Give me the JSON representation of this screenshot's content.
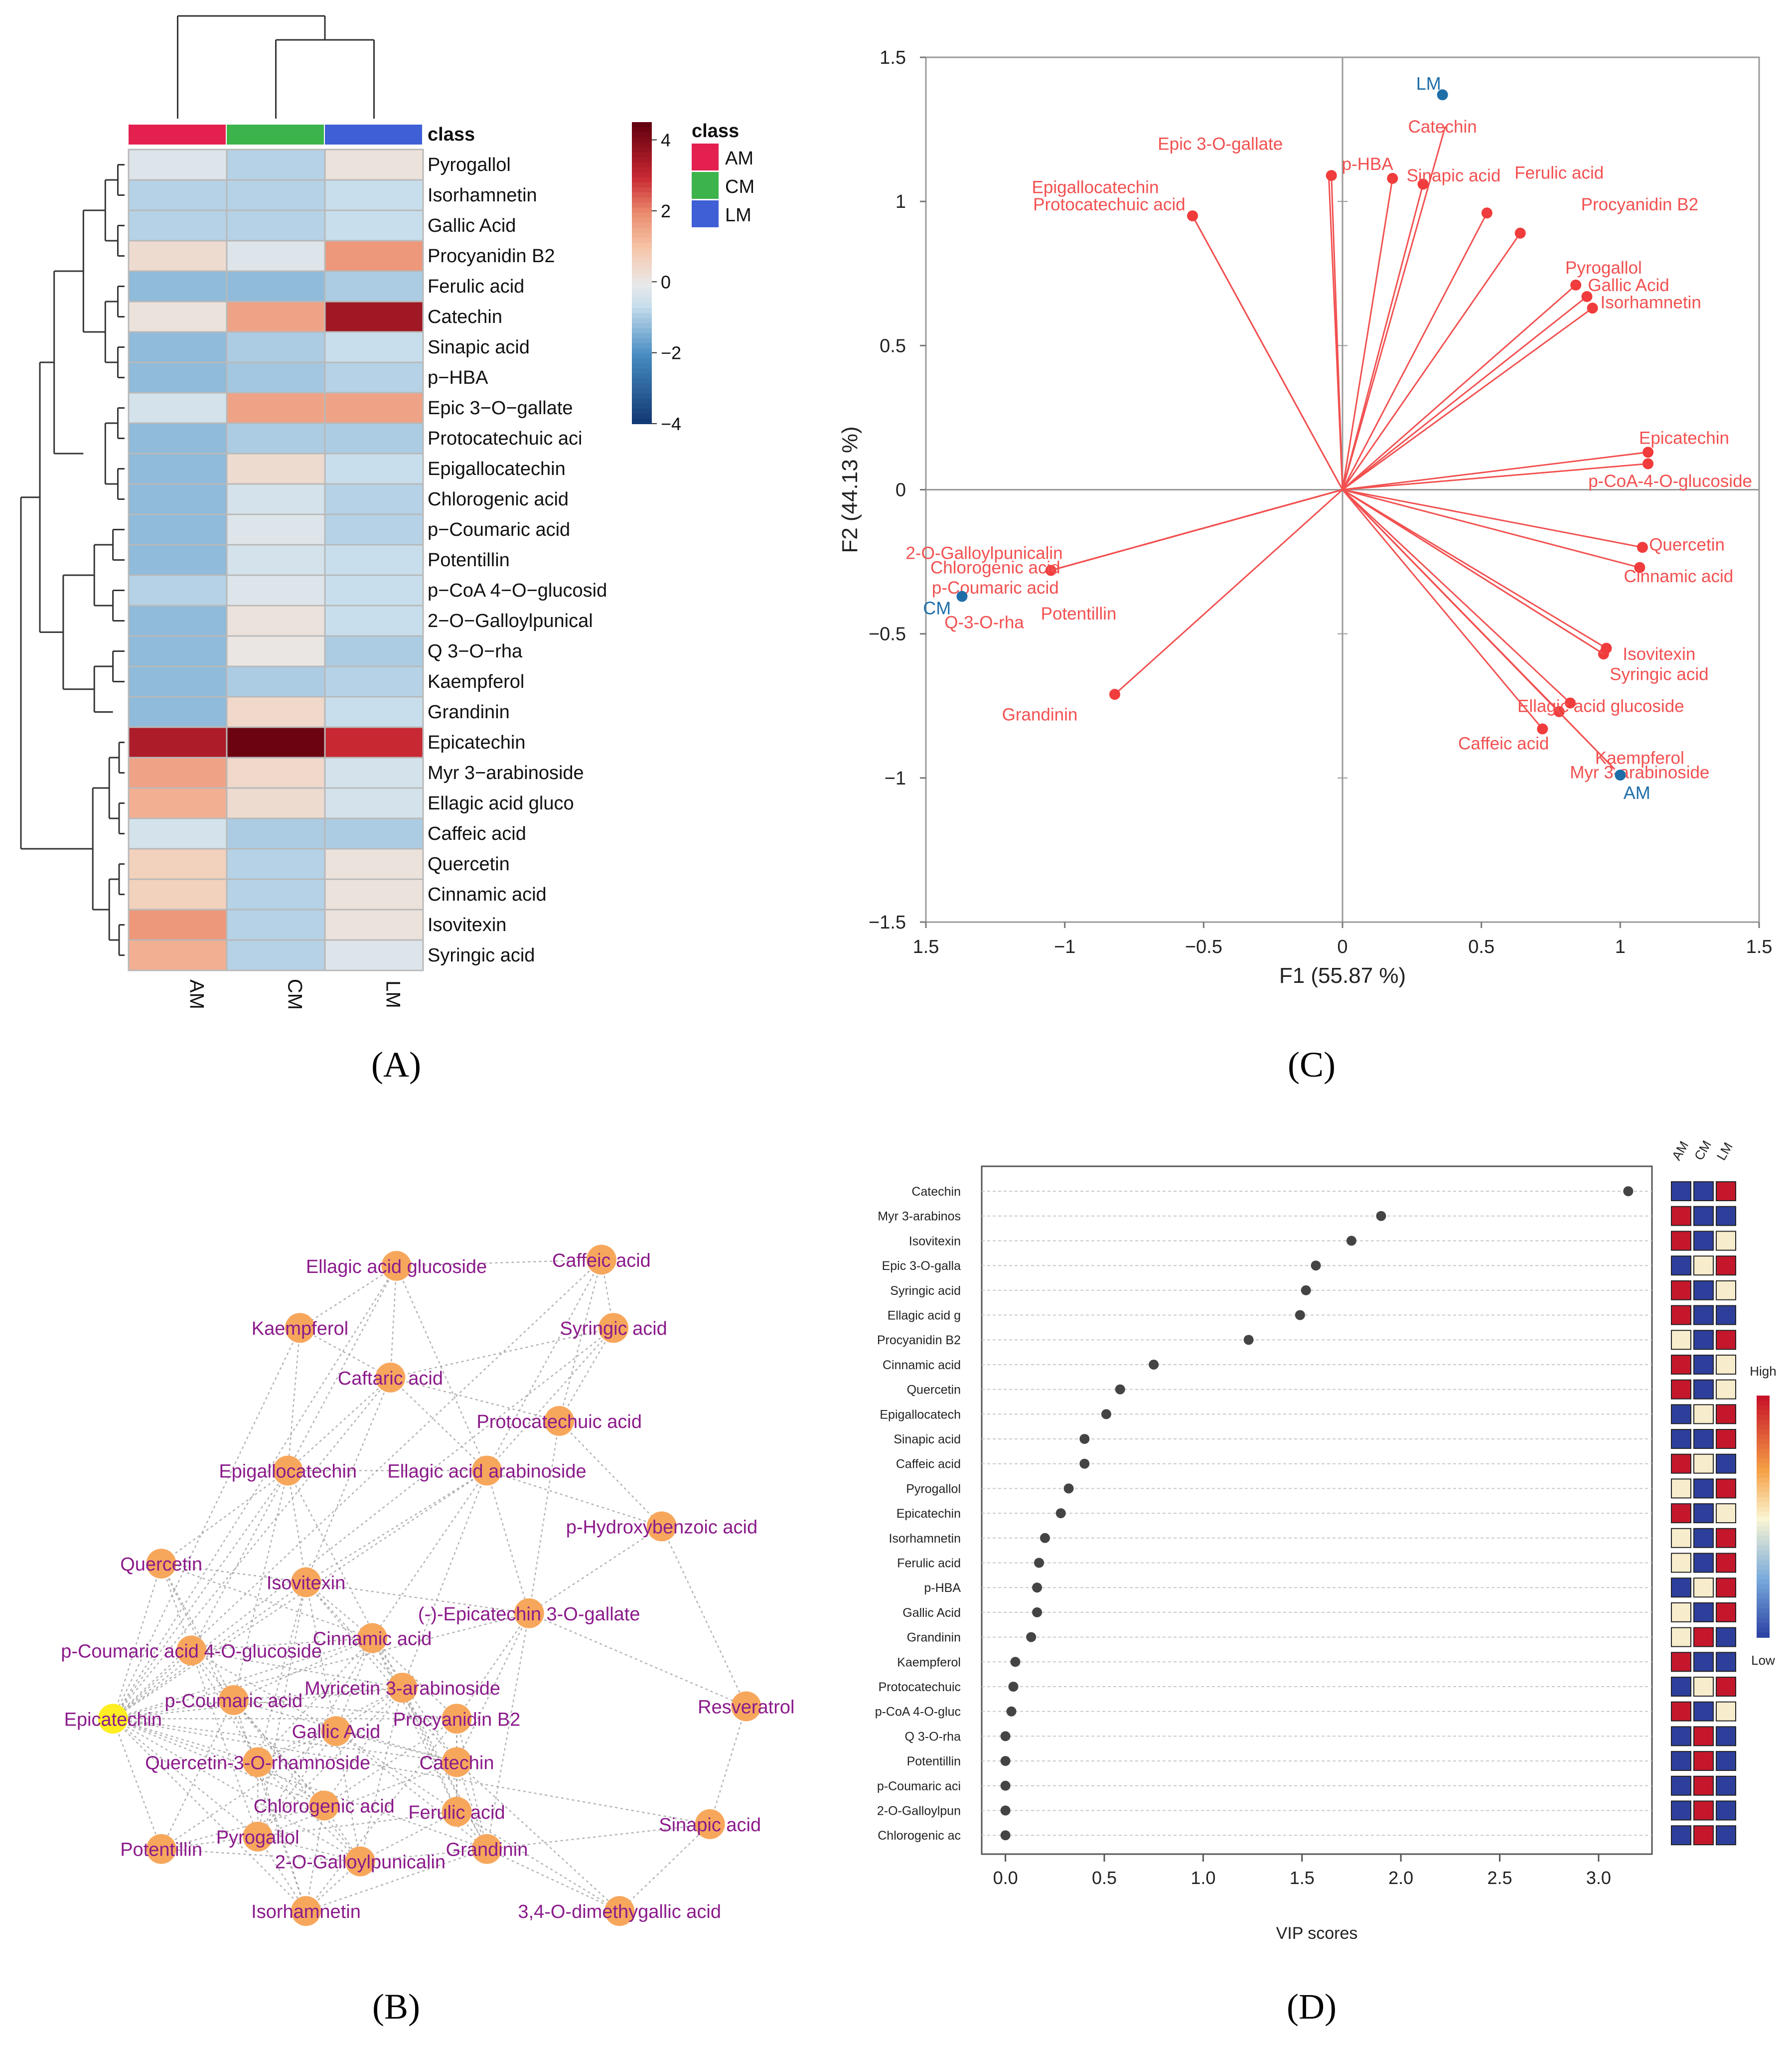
{
  "panel_labels": {
    "A": "(A)",
    "B": "(B)",
    "C": "(C)",
    "D": "(D)"
  },
  "chart_data": [
    {
      "id": "A",
      "type": "heatmap",
      "title": "",
      "columns": [
        "AM",
        "CM",
        "LM"
      ],
      "class_colors": {
        "AM": "#e3204f",
        "CM": "#3cb44b",
        "LM": "#3e5fd6"
      },
      "rows": [
        "Pyrogallol",
        "Isorhamnetin",
        "Gallic Acid",
        "Procyanidin B2",
        "Ferulic acid",
        "Catechin",
        "Sinapic acid",
        "p−HBA",
        "Epic 3−O−gallate",
        "Protocatechuic aci",
        "Epigallocatechin",
        "Chlorogenic acid",
        "p−Coumaric acid",
        "Potentillin",
        "p−CoA 4−O−glucosid",
        "2−O−Galloylpunical",
        "Q 3−O−rha",
        "Kaempferol",
        "Grandinin",
        "Epicatechin",
        "Myr 3−arabinoside",
        "Ellagic acid gluco",
        "Caffeic acid",
        "Quercetin",
        "Cinnamic acid",
        "Isovitexin",
        "Syringic acid"
      ],
      "values": [
        [
          -0.2,
          -0.8,
          0.2
        ],
        [
          -0.8,
          -0.8,
          -0.6
        ],
        [
          -0.8,
          -0.8,
          -0.6
        ],
        [
          0.4,
          -0.2,
          1.8
        ],
        [
          -1.2,
          -1.2,
          -0.9
        ],
        [
          0.2,
          1.6,
          3.6
        ],
        [
          -1.2,
          -0.9,
          -0.6
        ],
        [
          -1.2,
          -1.0,
          -0.8
        ],
        [
          -0.4,
          1.6,
          1.6
        ],
        [
          -1.2,
          -0.9,
          -0.9
        ],
        [
          -1.2,
          0.4,
          -0.6
        ],
        [
          -1.2,
          -0.4,
          -0.8
        ],
        [
          -1.2,
          -0.2,
          -0.8
        ],
        [
          -1.2,
          -0.4,
          -0.6
        ],
        [
          -0.8,
          -0.2,
          -0.6
        ],
        [
          -1.2,
          0.2,
          -0.6
        ],
        [
          -1.2,
          0.1,
          -0.9
        ],
        [
          -1.2,
          -0.9,
          -0.8
        ],
        [
          -1.2,
          0.5,
          -0.6
        ],
        [
          3.4,
          4.4,
          3.0
        ],
        [
          1.6,
          0.5,
          -0.4
        ],
        [
          1.4,
          0.4,
          -0.4
        ],
        [
          -0.4,
          -0.9,
          -0.9
        ],
        [
          0.7,
          -0.8,
          0.2
        ],
        [
          0.7,
          -0.8,
          0.2
        ],
        [
          1.8,
          -0.8,
          0.2
        ],
        [
          1.4,
          -0.8,
          -0.2
        ]
      ],
      "legend": {
        "title": "class",
        "entries": [
          "AM",
          "CM",
          "LM"
        ]
      },
      "colorbar": {
        "ticks": [
          "4",
          "2",
          "0",
          "−2",
          "−4"
        ],
        "range": [
          -4,
          4
        ]
      }
    },
    {
      "id": "B",
      "type": "network",
      "nodes": [
        {
          "label": "Ellagic acid glucoside",
          "x": 0.55,
          "y": 0.04
        },
        {
          "label": "Caffeic acid",
          "x": 0.89,
          "y": 0.03
        },
        {
          "label": "Kaempferol",
          "x": 0.39,
          "y": 0.14
        },
        {
          "label": "Syringic acid",
          "x": 0.91,
          "y": 0.14
        },
        {
          "label": "Caftaric acid",
          "x": 0.54,
          "y": 0.22
        },
        {
          "label": "Protocatechuic acid",
          "x": 0.82,
          "y": 0.29
        },
        {
          "label": "Epigallocatechin",
          "x": 0.37,
          "y": 0.37
        },
        {
          "label": "Ellagic acid arabinoside",
          "x": 0.7,
          "y": 0.37
        },
        {
          "label": "p-Hydroxybenzoic acid",
          "x": 0.99,
          "y": 0.46
        },
        {
          "label": "Quercetin",
          "x": 0.16,
          "y": 0.52
        },
        {
          "label": "Isovitexin",
          "x": 0.4,
          "y": 0.55
        },
        {
          "label": "(-)-Epicatechin 3-O-gallate",
          "x": 0.77,
          "y": 0.6
        },
        {
          "label": "p-Coumaric acid 4-O-glucoside",
          "x": 0.21,
          "y": 0.66
        },
        {
          "label": "Cinnamic acid",
          "x": 0.51,
          "y": 0.64
        },
        {
          "label": "p-Coumaric acid",
          "x": 0.28,
          "y": 0.74
        },
        {
          "label": "Myricetin 3-arabinoside",
          "x": 0.56,
          "y": 0.72
        },
        {
          "label": "Resveratrol",
          "x": 1.13,
          "y": 0.75
        },
        {
          "label": "Epicatechin",
          "x": 0.08,
          "y": 0.77,
          "highlight": true
        },
        {
          "label": "Gallic Acid",
          "x": 0.45,
          "y": 0.79
        },
        {
          "label": "Procyanidin B2",
          "x": 0.65,
          "y": 0.77
        },
        {
          "label": "Quercetin-3-O-rhamnoside",
          "x": 0.32,
          "y": 0.84
        },
        {
          "label": "Catechin",
          "x": 0.65,
          "y": 0.84
        },
        {
          "label": "Chlorogenic acid",
          "x": 0.43,
          "y": 0.91
        },
        {
          "label": "Ferulic acid",
          "x": 0.65,
          "y": 0.92
        },
        {
          "label": "Sinapic acid",
          "x": 1.07,
          "y": 0.94
        },
        {
          "label": "Pyrogallol",
          "x": 0.32,
          "y": 0.96
        },
        {
          "label": "Potentillin",
          "x": 0.16,
          "y": 0.98
        },
        {
          "label": "2-O-Galloylpunicalin",
          "x": 0.49,
          "y": 1.0
        },
        {
          "label": "Grandinin",
          "x": 0.7,
          "y": 0.98
        },
        {
          "label": "Isorhamnetin",
          "x": 0.4,
          "y": 1.08
        },
        {
          "label": "3,4-O-dimethygallic acid",
          "x": 0.92,
          "y": 1.08
        }
      ]
    },
    {
      "id": "C",
      "type": "scatter",
      "xlabel": "F1 (55.87 %)",
      "ylabel": "F2 (44.13 %)",
      "xlim": [
        -1.5,
        1.5
      ],
      "ylim": [
        -1.5,
        1.5
      ],
      "xticks": [
        "1.5",
        "−1",
        "−0.5",
        "0",
        "0.5",
        "1",
        "1.5"
      ],
      "yticks": [
        "1.5",
        "1",
        "0.5",
        "0",
        "−0.5",
        "−1",
        "−1.5"
      ],
      "observations": [
        {
          "label": "LM",
          "x": 0.36,
          "y": 1.37
        },
        {
          "label": "CM",
          "x": -1.37,
          "y": -0.37
        },
        {
          "label": "AM",
          "x": 1.0,
          "y": -0.99
        }
      ],
      "variables": [
        {
          "label": "Catechin",
          "x": 0.37,
          "y": 1.26,
          "lx": 0.36,
          "ly": 1.26,
          "tip": false
        },
        {
          "label": "Epic 3-O-gallate",
          "x": -0.05,
          "y": 1.1,
          "lx": -0.44,
          "ly": 1.2,
          "tip": false
        },
        {
          "label": "p-HBA",
          "x": -0.04,
          "y": 1.09,
          "lx": 0.09,
          "ly": 1.13,
          "tip": true
        },
        {
          "label": "Sinapic acid",
          "x": 0.18,
          "y": 1.08,
          "lx": 0.4,
          "ly": 1.09,
          "tip": true
        },
        {
          "label": "",
          "x": 0.29,
          "y": 1.06,
          "tip": true
        },
        {
          "label": "Ferulic acid",
          "x": 0.52,
          "y": 0.96,
          "lx": 0.78,
          "ly": 1.1,
          "tip": true
        },
        {
          "label": "Procyanidin B2",
          "x": 0.64,
          "y": 0.89,
          "lx": 1.07,
          "ly": 0.99,
          "tip": true
        },
        {
          "label": "Epigallocatechin",
          "x": -0.54,
          "y": 0.95,
          "lx": -0.89,
          "ly": 1.05,
          "tip": false
        },
        {
          "label": "Protocatechuic acid",
          "x": -0.54,
          "y": 0.95,
          "lx": -0.84,
          "ly": 0.99,
          "tip": true
        },
        {
          "label": "Pyrogallol",
          "x": 0.84,
          "y": 0.71,
          "lx": 0.94,
          "ly": 0.77,
          "tip": true
        },
        {
          "label": "Gallic Acid",
          "x": 0.88,
          "y": 0.67,
          "lx": 1.03,
          "ly": 0.71,
          "tip": true
        },
        {
          "label": "Isorhamnetin",
          "x": 0.9,
          "y": 0.63,
          "lx": 1.11,
          "ly": 0.65,
          "tip": true
        },
        {
          "label": "Epicatechin",
          "x": 1.1,
          "y": 0.13,
          "lx": 1.23,
          "ly": 0.18,
          "tip": true
        },
        {
          "label": "p-CoA-4-O-glucoside",
          "x": 1.1,
          "y": 0.09,
          "lx": 1.18,
          "ly": 0.03,
          "tip": true
        },
        {
          "label": "Quercetin",
          "x": 1.08,
          "y": -0.2,
          "lx": 1.24,
          "ly": -0.19,
          "tip": true
        },
        {
          "label": "Cinnamic acid",
          "x": 1.07,
          "y": -0.27,
          "lx": 1.21,
          "ly": -0.3,
          "tip": true
        },
        {
          "label": "2-O-Galloylpunicalin",
          "x": -1.05,
          "y": -0.28,
          "lx": -1.29,
          "ly": -0.22,
          "tip": false
        },
        {
          "label": "Chlorogenic acid",
          "x": -1.05,
          "y": -0.28,
          "lx": -1.25,
          "ly": -0.27,
          "tip": true
        },
        {
          "label": "p-Coumaric acid",
          "x": -1.05,
          "y": -0.28,
          "lx": -1.25,
          "ly": -0.34,
          "tip": false
        },
        {
          "label": "Q-3-O-rha",
          "x": -1.05,
          "y": -0.28,
          "lx": -1.29,
          "ly": -0.46,
          "tip": false
        },
        {
          "label": "Potentillin",
          "x": -1.05,
          "y": -0.28,
          "lx": -0.95,
          "ly": -0.43,
          "tip": false
        },
        {
          "label": "Isovitexin",
          "x": 0.95,
          "y": -0.55,
          "lx": 1.14,
          "ly": -0.57,
          "tip": true
        },
        {
          "label": "",
          "x": 0.94,
          "y": -0.57,
          "tip": true
        },
        {
          "label": "Syringic acid",
          "x": 0.94,
          "y": -0.57,
          "lx": 1.14,
          "ly": -0.64,
          "tip": false
        },
        {
          "label": "Ellagic acid glucoside",
          "x": 0.82,
          "y": -0.74,
          "lx": 0.93,
          "ly": -0.75,
          "tip": true
        },
        {
          "label": "",
          "x": 0.78,
          "y": -0.77,
          "tip": true
        },
        {
          "label": "Caffeic acid",
          "x": 0.72,
          "y": -0.83,
          "lx": 0.58,
          "ly": -0.88,
          "tip": true
        },
        {
          "label": "Grandinin",
          "x": -0.82,
          "y": -0.71,
          "lx": -1.09,
          "ly": -0.78,
          "tip": true
        },
        {
          "label": "Kaempferol",
          "x": 0.98,
          "y": -0.97,
          "lx": 1.07,
          "ly": -0.93,
          "tip": false
        },
        {
          "label": "Myr 3-arabinoside",
          "x": 0.98,
          "y": -0.97,
          "lx": 1.07,
          "ly": -0.98,
          "tip": false
        }
      ]
    },
    {
      "id": "D",
      "type": "scatter",
      "xlabel": "VIP scores",
      "xlim": [
        -0.12,
        3.27
      ],
      "xticks": [
        0.0,
        0.5,
        1.0,
        1.5,
        2.0,
        2.5,
        3.0
      ],
      "xticklabels": [
        "0.0",
        "0.5",
        "1.0",
        "1.5",
        "2.0",
        "2.5",
        "3.0"
      ],
      "categories": [
        "Catechin",
        "Myr 3-arabinos",
        "Isovitexin",
        "Epic 3-O-galla",
        "Syringic acid",
        "Ellagic acid g",
        "Procyanidin B2",
        "Cinnamic acid",
        "Quercetin",
        "Epigallocatech",
        "Sinapic acid",
        "Caffeic acid",
        "Pyrogallol",
        "Epicatechin",
        "Isorhamnetin",
        "Ferulic acid",
        "p-HBA",
        "Gallic Acid",
        "Grandinin",
        "Kaempferol",
        "Protocatechuic",
        "p-CoA 4-O-gluc",
        "Q 3-O-rha",
        "Potentillin",
        "p-Coumaric aci",
        "2-O-Galloylpun",
        "Chlorogenic ac"
      ],
      "values": [
        3.15,
        1.9,
        1.75,
        1.57,
        1.52,
        1.49,
        1.23,
        0.75,
        0.58,
        0.51,
        0.4,
        0.4,
        0.32,
        0.28,
        0.2,
        0.17,
        0.16,
        0.16,
        0.13,
        0.05,
        0.04,
        0.03,
        0.0,
        0.0,
        0.0,
        0.0,
        0.0
      ],
      "group_columns": [
        "AM",
        "CM",
        "LM"
      ],
      "group_levels": [
        [
          "b",
          "b",
          "r"
        ],
        [
          "r",
          "b",
          "b"
        ],
        [
          "r",
          "b",
          "y"
        ],
        [
          "b",
          "y",
          "r"
        ],
        [
          "r",
          "b",
          "y"
        ],
        [
          "r",
          "b",
          "b"
        ],
        [
          "y",
          "b",
          "r"
        ],
        [
          "r",
          "b",
          "y"
        ],
        [
          "r",
          "b",
          "y"
        ],
        [
          "b",
          "y",
          "r"
        ],
        [
          "b",
          "b",
          "r"
        ],
        [
          "r",
          "y",
          "b"
        ],
        [
          "y",
          "b",
          "r"
        ],
        [
          "r",
          "b",
          "y"
        ],
        [
          "y",
          "b",
          "r"
        ],
        [
          "y",
          "b",
          "r"
        ],
        [
          "b",
          "y",
          "r"
        ],
        [
          "y",
          "b",
          "r"
        ],
        [
          "y",
          "r",
          "b"
        ],
        [
          "r",
          "b",
          "b"
        ],
        [
          "b",
          "y",
          "r"
        ],
        [
          "r",
          "b",
          "y"
        ],
        [
          "b",
          "r",
          "b"
        ],
        [
          "b",
          "r",
          "b"
        ],
        [
          "b",
          "r",
          "b"
        ],
        [
          "b",
          "r",
          "b"
        ],
        [
          "b",
          "r",
          "b"
        ]
      ],
      "colorbar": {
        "high": "High",
        "low": "Low"
      }
    }
  ]
}
